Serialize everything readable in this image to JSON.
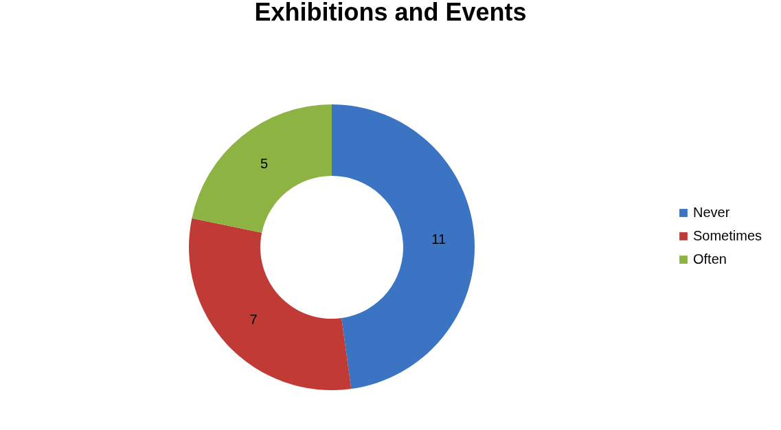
{
  "chart_data": {
    "type": "donut",
    "title": "Exhibitions and Events",
    "categories": [
      "Never",
      "Sometimes",
      "Often"
    ],
    "values": [
      11,
      7,
      5
    ],
    "colors": [
      "#3a74c2",
      "#c03b36",
      "#8db443"
    ],
    "data_labels": true,
    "legend": "right"
  }
}
